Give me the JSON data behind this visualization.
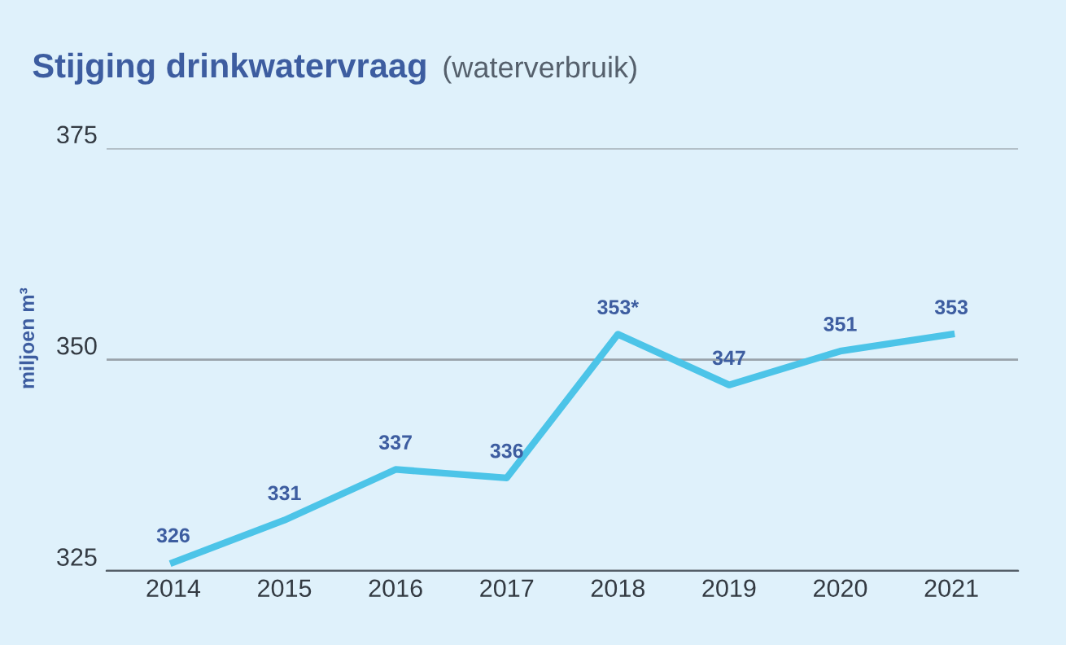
{
  "chart_data": {
    "type": "line",
    "title": "Stijging drinkwatervraag",
    "subtitle": "(waterverbruik)",
    "ylabel": "miljoen m³",
    "categories": [
      "2014",
      "2015",
      "2016",
      "2017",
      "2018",
      "2019",
      "2020",
      "2021"
    ],
    "series": [
      {
        "color": "#4cc4e8",
        "values": [
          326,
          331,
          337,
          336,
          353,
          347,
          351,
          353
        ],
        "value_labels": [
          "326",
          "331",
          "337",
          "336",
          "353*",
          "347",
          "351",
          "353"
        ]
      }
    ],
    "ylim": [
      325,
      375
    ],
    "yticks": [
      325,
      350,
      375
    ],
    "grid": "y",
    "marker": "none",
    "line_style": "solid",
    "legend": false
  }
}
